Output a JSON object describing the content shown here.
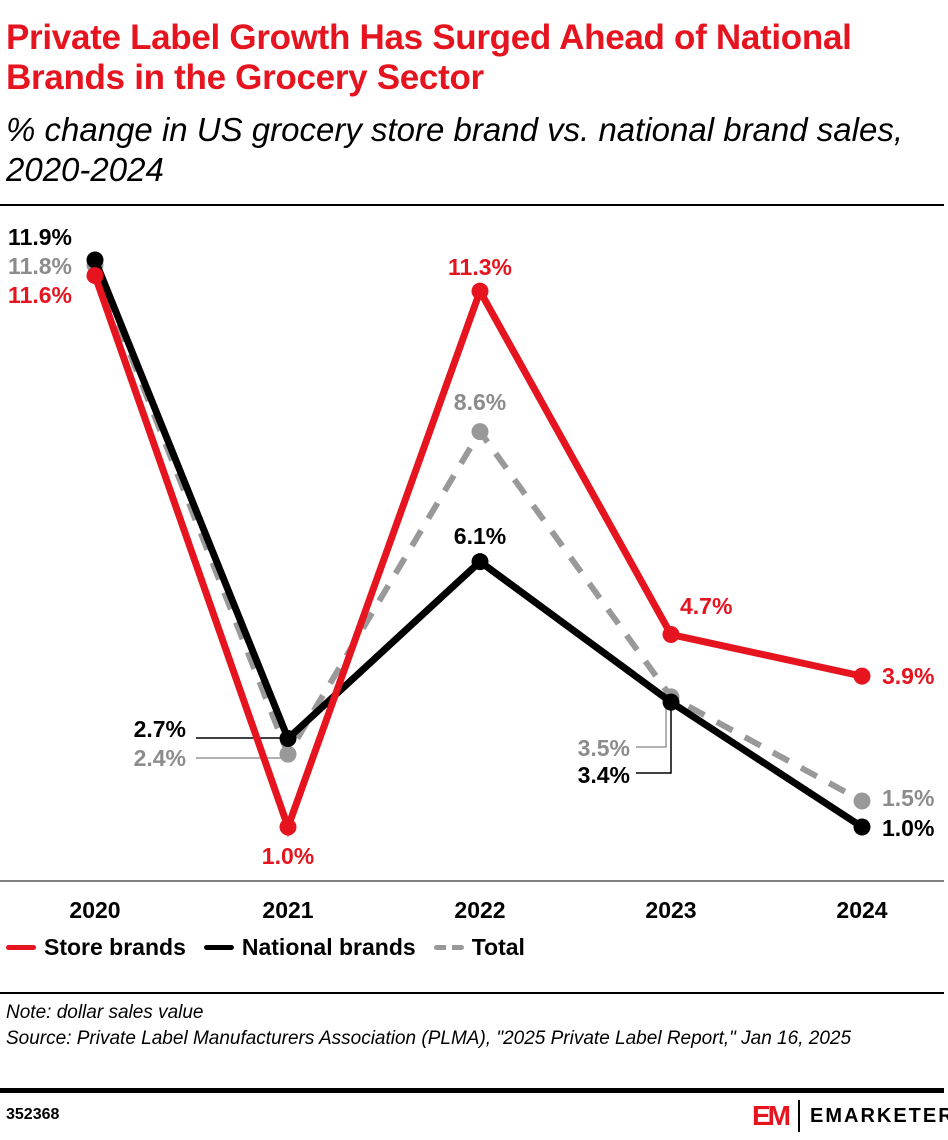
{
  "title": "Private Label Growth Has Surged Ahead of National Brands in the Grocery Sector",
  "subtitle": "% change in US grocery store brand vs. national brand sales, 2020-2024",
  "chart_data": {
    "type": "line",
    "title": "Private Label Growth Has Surged Ahead of National Brands in the Grocery Sector",
    "subtitle": "% change in US grocery store brand vs. national brand sales, 2020-2024",
    "categories": [
      "2020",
      "2021",
      "2022",
      "2023",
      "2024"
    ],
    "series": [
      {
        "name": "Store brands",
        "values": [
          11.6,
          1.0,
          11.3,
          4.7,
          3.9
        ],
        "labels": [
          "11.6%",
          "1.0%",
          "11.3%",
          "4.7%",
          "3.9%"
        ],
        "color": "#e5141f",
        "style": "solid"
      },
      {
        "name": "National brands",
        "values": [
          11.9,
          2.7,
          6.1,
          3.4,
          1.0
        ],
        "labels": [
          "11.9%",
          "2.7%",
          "6.1%",
          "3.4%",
          "1.0%"
        ],
        "color": "#000000",
        "style": "solid"
      },
      {
        "name": "Total",
        "values": [
          11.8,
          2.4,
          8.6,
          3.5,
          1.5
        ],
        "labels": [
          "11.8%",
          "2.4%",
          "8.6%",
          "3.5%",
          "1.5%"
        ],
        "color": "#999999",
        "style": "dashed"
      }
    ],
    "ylim": [
      0,
      12
    ],
    "grid": false,
    "legend": "bottom-left"
  },
  "note": "Note: dollar sales value",
  "source": "Source: Private Label Manufacturers Association (PLMA), \"2025 Private Label Report,\" Jan 16, 2025",
  "chart_id": "352368",
  "brand": {
    "mark": "EM",
    "name": "EMARKETER"
  }
}
